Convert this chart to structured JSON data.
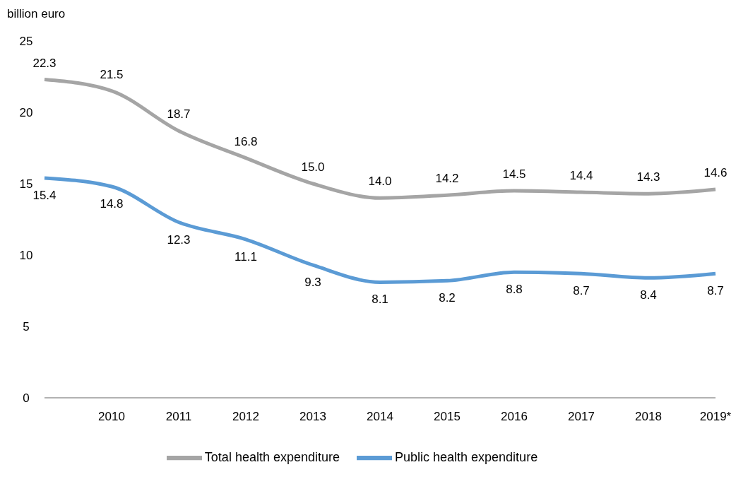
{
  "chart_data": {
    "type": "line",
    "ylabel": "billion euro",
    "categories": [
      null,
      "2010",
      "2011",
      "2012",
      "2013",
      "2014",
      "2015",
      "2016",
      "2017",
      "2018",
      "2019*"
    ],
    "series": [
      {
        "name": "Total health expenditure",
        "color": "#a5a5a5",
        "values": [
          22.3,
          21.5,
          18.7,
          16.8,
          15.0,
          14.0,
          14.2,
          14.5,
          14.4,
          14.3,
          14.6
        ],
        "value_labels": [
          "22.3",
          "21.5",
          "18.7",
          "16.8",
          "15.0",
          "14.0",
          "14.2",
          "14.5",
          "14.4",
          "14.3",
          "14.6"
        ]
      },
      {
        "name": "Public health expenditure",
        "color": "#5b9bd5",
        "values": [
          15.4,
          14.8,
          12.3,
          11.1,
          9.3,
          8.1,
          8.2,
          8.8,
          8.7,
          8.4,
          8.7
        ],
        "value_labels": [
          "15.4",
          "14.8",
          "12.3",
          "11.1",
          "9.3",
          "8.1",
          "8.2",
          "8.8",
          "8.7",
          "8.4",
          "8.7"
        ]
      }
    ],
    "ylim": [
      0,
      25
    ],
    "yticks": [
      0,
      5,
      10,
      15,
      20,
      25
    ],
    "grid": false,
    "legend": "bottom",
    "marker": "none",
    "line_style": "solid"
  }
}
